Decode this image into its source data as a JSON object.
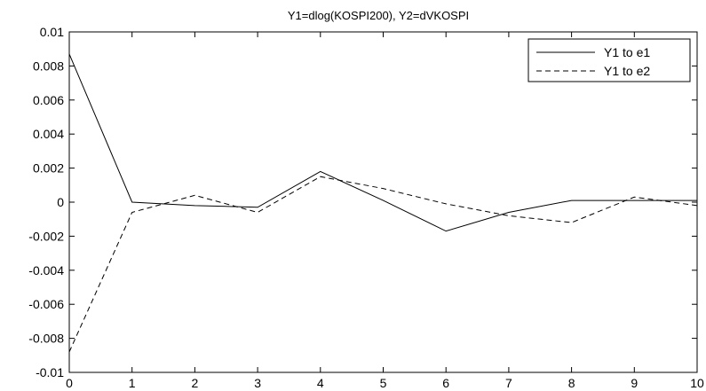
{
  "chart_data": {
    "type": "line",
    "title": "Y1=dlog(KOSPI200), Y2=dVKOSPI",
    "xlabel": "",
    "ylabel": "",
    "xlim": [
      0,
      10
    ],
    "ylim": [
      -0.01,
      0.01
    ],
    "x": [
      0,
      1,
      2,
      3,
      4,
      5,
      6,
      7,
      8,
      9,
      10
    ],
    "x_ticks": [
      0,
      1,
      2,
      3,
      4,
      5,
      6,
      7,
      8,
      9,
      10
    ],
    "x_tick_labels": [
      "0",
      "1",
      "2",
      "3",
      "4",
      "5",
      "6",
      "7",
      "8",
      "9",
      "10"
    ],
    "y_ticks": [
      0.01,
      0.008,
      0.006,
      0.004,
      0.002,
      0,
      -0.002,
      -0.004,
      -0.006,
      -0.008,
      -0.01
    ],
    "y_tick_labels": [
      "0.01",
      "0.008",
      "0.006",
      "0.004",
      "0.002",
      "0",
      "-0.002",
      "-0.004",
      "-0.006",
      "-0.008",
      "-0.01"
    ],
    "grid": false,
    "legend_position": "top-right",
    "series": [
      {
        "name": "Y1 to e1",
        "style": "solid",
        "color": "#000000",
        "values": [
          0.0087,
          0.0,
          -0.0002,
          -0.0003,
          0.0018,
          0.0001,
          -0.0017,
          -0.0006,
          0.0001,
          0.0001,
          0.0001
        ]
      },
      {
        "name": "Y1 to e2",
        "style": "dashed",
        "color": "#000000",
        "values": [
          -0.0088,
          -0.0006,
          0.0004,
          -0.0006,
          0.0015,
          0.0008,
          -0.0001,
          -0.0008,
          -0.0012,
          0.0003,
          -0.0002
        ]
      }
    ]
  }
}
